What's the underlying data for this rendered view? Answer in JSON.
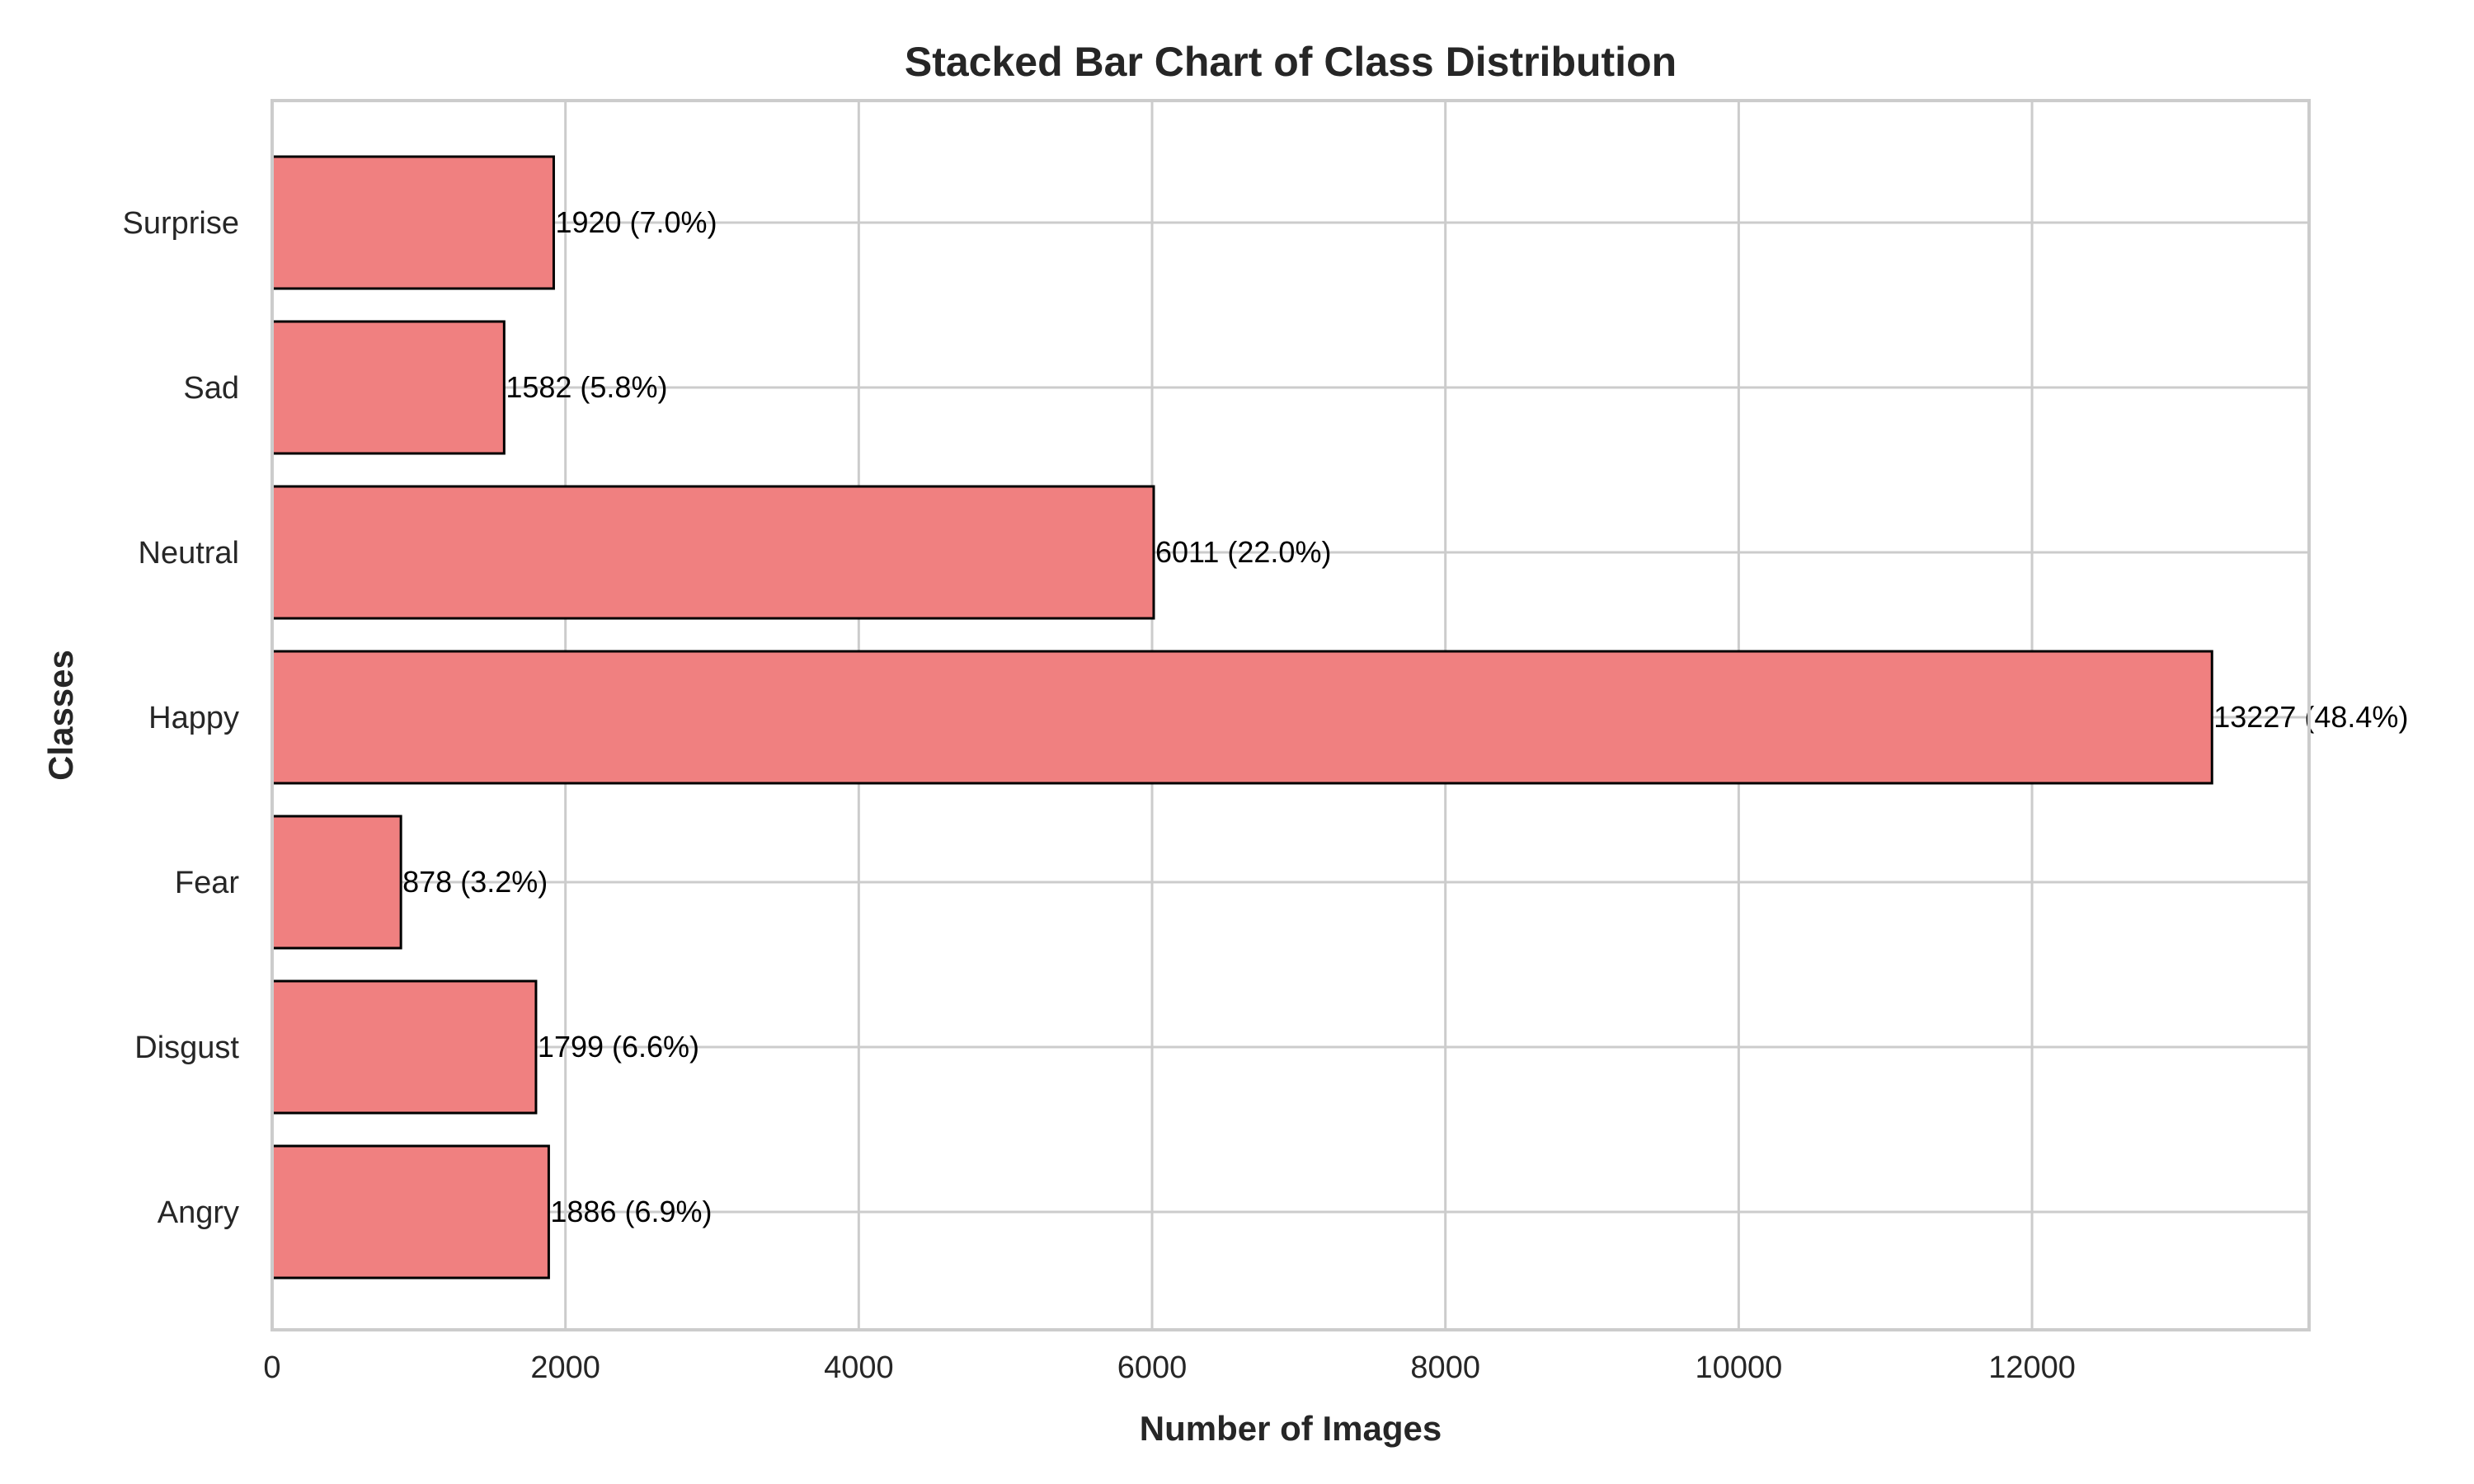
{
  "chart_data": {
    "type": "bar",
    "orientation": "horizontal",
    "title": "Stacked Bar Chart of Class Distribution",
    "xlabel": "Number of Images",
    "ylabel": "Classes",
    "categories": [
      "Angry",
      "Disgust",
      "Fear",
      "Happy",
      "Neutral",
      "Sad",
      "Surprise"
    ],
    "values": [
      1886,
      1799,
      878,
      13227,
      6011,
      1582,
      1920
    ],
    "data_labels": [
      "1886 (6.9%)",
      "1799 (6.6%)",
      "878 (3.2%)",
      "13227 (48.4%)",
      "6011 (22.0%)",
      "1582 (5.8%)",
      "1920 (7.0%)"
    ],
    "xlim": [
      0,
      13889
    ],
    "xticks": [
      0,
      2000,
      4000,
      6000,
      8000,
      10000,
      12000
    ],
    "xtick_labels": [
      "0",
      "2000",
      "4000",
      "6000",
      "8000",
      "10000",
      "12000"
    ],
    "grid": true,
    "colors": {
      "bar_fill": "#f08080",
      "bar_edge": "#000000",
      "grid": "#cccccc",
      "spine": "#cccccc",
      "text": "#262626"
    }
  }
}
